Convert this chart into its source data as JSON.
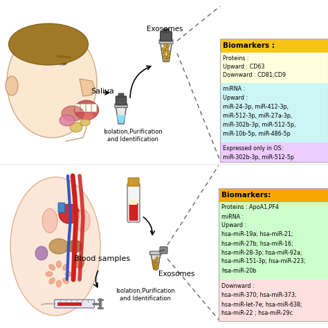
{
  "bg_color": "#ffffff",
  "figsize": [
    4.74,
    4.74
  ],
  "dpi": 100,
  "top_panel": {
    "saliva_label": "Saliva",
    "exosomes_label": "Exosomes",
    "iso_label": "Isolation,Purification\nand Identification",
    "box": {
      "title": "Biomarkers :",
      "title_bg": "#f5c518",
      "sec1_bg": "#ffffdd",
      "sec1_lines": [
        "Proteins :",
        "Upward : CD63",
        "Downward : CD81,CD9"
      ],
      "sec2_bg": "#ccf5f5",
      "sec2_lines": [
        "miRNA :",
        "Upward :",
        "miR-24-3p, miR-412-3p,",
        "miR-512-3p, miR-27a-3p,",
        "miR-302b-3p, miR-512-5p,",
        "miR-10b-5p, miR-486-5p"
      ],
      "sec3_bg": "#eeccff",
      "sec3_lines": [
        "Expressed only in OS:",
        "miR-302b-3p, miR-512-5p"
      ]
    }
  },
  "bottom_panel": {
    "blood_label": "Blood samples",
    "exosomes_label": "Exosomes",
    "iso_label": "Isolation,Purification\nand Identification",
    "box": {
      "title": "Biomarkers:",
      "title_bg": "#f5a800",
      "sec1_bg": "#ccffcc",
      "sec1_lines": [
        "Proteins : ApoA1,PF4",
        "miRNA :",
        "Upward :",
        "hsa-miR-19a; hsa-miR-21;",
        "hsa-miR-27b; hsa-miR-16;",
        "hsa-miR-28-3p; hsa-miR-92a;",
        "hsa-miR-151-3p; hsa-miR-223;",
        "hsa-miR-20b"
      ],
      "sec2_bg": "#ffe0e0",
      "sec2_lines": [
        "Downward :",
        "hsa-miR-370; hsa-miR-373;",
        "hsa-miR-let-7e; hsa-miR-638;",
        "hsa-miR-22 ; hsa-miR-29c"
      ]
    }
  }
}
